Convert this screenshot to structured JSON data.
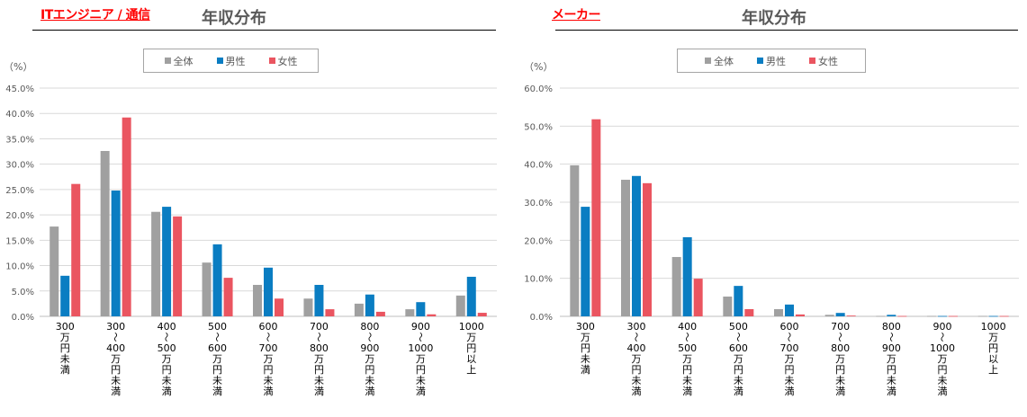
{
  "colors": {
    "all": "#a0a0a0",
    "male": "#0a7dc2",
    "female": "#ea5560"
  },
  "chart_data": [
    {
      "type": "bar",
      "category_title": "ITエンジニア / 通信",
      "title": "年収分布",
      "ylabel": "（%）",
      "ylim": [
        0,
        45
      ],
      "yticks": [
        "0.0%",
        "5.0%",
        "10.0%",
        "15.0%",
        "20.0%",
        "25.0%",
        "30.0%",
        "35.0%",
        "40.0%",
        "45.0%"
      ],
      "legend": [
        "全体",
        "男性",
        "女性"
      ],
      "legend_position": "top-center",
      "grid": true,
      "categories": [
        [
          "300",
          "万",
          "円",
          "未",
          "満"
        ],
        [
          "300",
          "〜",
          "400",
          "万",
          "円",
          "未",
          "満"
        ],
        [
          "400",
          "〜",
          "500",
          "万",
          "円",
          "未",
          "満"
        ],
        [
          "500",
          "〜",
          "600",
          "万",
          "円",
          "未",
          "満"
        ],
        [
          "600",
          "〜",
          "700",
          "万",
          "円",
          "未",
          "満"
        ],
        [
          "700",
          "〜",
          "800",
          "万",
          "円",
          "未",
          "満"
        ],
        [
          "800",
          "〜",
          "900",
          "万",
          "円",
          "未",
          "満"
        ],
        [
          "900",
          "〜",
          "1000",
          "万",
          "円",
          "未",
          "満"
        ],
        [
          "1000",
          "万",
          "円",
          "以",
          "上"
        ]
      ],
      "series": [
        {
          "name": "全体",
          "values": [
            17.7,
            32.6,
            20.6,
            10.6,
            6.2,
            3.5,
            2.5,
            1.4,
            4.1
          ]
        },
        {
          "name": "男性",
          "values": [
            8.0,
            24.8,
            21.6,
            14.2,
            9.6,
            6.2,
            4.3,
            2.8,
            7.8
          ]
        },
        {
          "name": "女性",
          "values": [
            26.1,
            39.2,
            19.7,
            7.6,
            3.5,
            1.4,
            0.9,
            0.4,
            0.7
          ]
        }
      ]
    },
    {
      "type": "bar",
      "category_title": "メーカー",
      "title": "年収分布",
      "ylabel": "（%）",
      "ylim": [
        0,
        60
      ],
      "yticks": [
        "0.0%",
        "10.0%",
        "20.0%",
        "30.0%",
        "40.0%",
        "50.0%",
        "60.0%"
      ],
      "legend": [
        "全体",
        "男性",
        "女性"
      ],
      "legend_position": "top-center",
      "grid": true,
      "categories": [
        [
          "300",
          "万",
          "円",
          "未",
          "満"
        ],
        [
          "300",
          "〜",
          "400",
          "万",
          "円",
          "未",
          "満"
        ],
        [
          "400",
          "〜",
          "500",
          "万",
          "円",
          "未",
          "満"
        ],
        [
          "500",
          "〜",
          "600",
          "万",
          "円",
          "未",
          "満"
        ],
        [
          "600",
          "〜",
          "700",
          "万",
          "円",
          "未",
          "満"
        ],
        [
          "700",
          "〜",
          "800",
          "万",
          "円",
          "未",
          "満"
        ],
        [
          "800",
          "〜",
          "900",
          "万",
          "円",
          "未",
          "満"
        ],
        [
          "900",
          "〜",
          "1000",
          "万",
          "円",
          "未",
          "満"
        ],
        [
          "1000",
          "万",
          "円",
          "以",
          "上"
        ]
      ],
      "series": [
        {
          "name": "全体",
          "values": [
            39.7,
            35.9,
            15.6,
            5.2,
            1.9,
            0.4,
            0.1,
            0.1,
            0.1
          ]
        },
        {
          "name": "男性",
          "values": [
            28.8,
            36.9,
            20.8,
            8.0,
            3.1,
            0.9,
            0.4,
            0.1,
            0.1
          ]
        },
        {
          "name": "女性",
          "values": [
            51.8,
            35.0,
            9.9,
            1.9,
            0.5,
            0.2,
            0.1,
            0.1,
            0.1
          ]
        }
      ]
    }
  ]
}
